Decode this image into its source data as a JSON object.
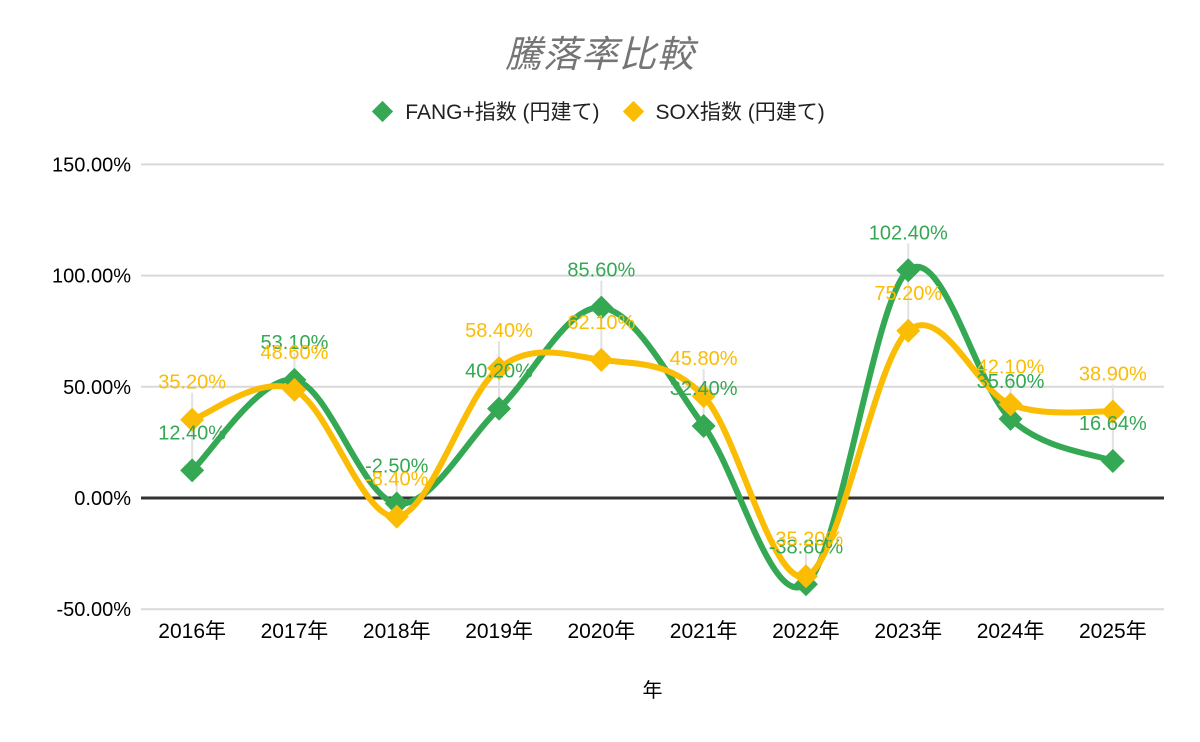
{
  "title": {
    "text": "騰落率比較",
    "color": "#757575"
  },
  "legend": {
    "position": "top",
    "items": [
      {
        "id": "fang-plus",
        "label": "FANG+指数 (円建て)",
        "color": "#34a853"
      },
      {
        "id": "sox",
        "label": "SOX指数 (円建て)",
        "color": "#fbbc04"
      }
    ]
  },
  "chart_data": {
    "type": "line",
    "smooth": true,
    "marker": "diamond",
    "grid": "horizontal",
    "legend_position": "top",
    "title": "騰落率比較",
    "xlabel": "年",
    "ylabel": "",
    "y_axis_format": "percent",
    "ylim": [
      -50,
      150
    ],
    "y_ticks": [
      {
        "value": 150,
        "label": "150.00%"
      },
      {
        "value": 100,
        "label": "100.00%"
      },
      {
        "value": 50,
        "label": "50.00%"
      },
      {
        "value": 0,
        "label": "0.00%"
      },
      {
        "value": -50,
        "label": "-50.00%"
      }
    ],
    "categories": [
      "2016年",
      "2017年",
      "2018年",
      "2019年",
      "2020年",
      "2021年",
      "2022年",
      "2023年",
      "2024年",
      "2025年"
    ],
    "series": [
      {
        "id": "fang-plus",
        "name": "FANG+指数 (円建て)",
        "color": "#34a853",
        "values": [
          12.4,
          53.1,
          -2.5,
          40.2,
          85.6,
          32.4,
          -38.8,
          102.4,
          35.6,
          16.64
        ],
        "labels": [
          "12.40%",
          "53.10%",
          "-2.50%",
          "40.20%",
          "85.60%",
          "32.40%",
          "-38.80%",
          "102.40%",
          "35.60%",
          "16.64%"
        ]
      },
      {
        "id": "sox",
        "name": "SOX指数 (円建て)",
        "color": "#fbbc04",
        "values": [
          35.2,
          48.6,
          -8.4,
          58.4,
          62.1,
          45.8,
          -35.2,
          75.2,
          42.1,
          38.9
        ],
        "labels": [
          "35.20%",
          "48.60%",
          "-8.40%",
          "58.40%",
          "62.10%",
          "45.80%",
          "-35.20%",
          "75.20%",
          "42.10%",
          "38.90%"
        ]
      }
    ]
  },
  "colors": {
    "gridline": "#d9d9d9",
    "zero_axis": "#333333",
    "leader_line": "#e2e2e2",
    "tick_text": "#000000",
    "legend_text": "#212121",
    "background": "#ffffff"
  }
}
